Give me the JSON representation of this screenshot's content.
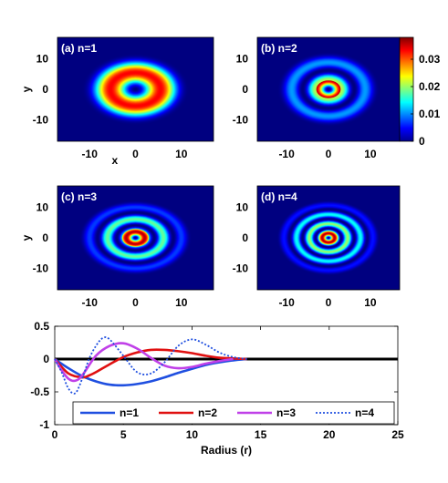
{
  "chart_data": [
    {
      "type": "heatmap",
      "panel_label": "(a) n=1",
      "n": 1,
      "xlabel": "x",
      "ylabel": "y",
      "xlim": [
        -17,
        17
      ],
      "ylim": [
        -17,
        17
      ],
      "xticks": [
        -10,
        0,
        10
      ],
      "yticks": [
        10,
        0,
        -10
      ]
    },
    {
      "type": "heatmap",
      "panel_label": "(b) n=2",
      "n": 2,
      "xlabel": "",
      "ylabel": "",
      "xlim": [
        -17,
        17
      ],
      "ylim": [
        -17,
        17
      ],
      "xticks": [
        -10,
        0,
        10
      ],
      "yticks": [
        10,
        0,
        -10
      ]
    },
    {
      "type": "heatmap",
      "panel_label": "(c) n=3",
      "n": 3,
      "xlabel": "",
      "ylabel": "y",
      "xlim": [
        -17,
        17
      ],
      "ylim": [
        -17,
        17
      ],
      "xticks": [
        -10,
        0,
        10
      ],
      "yticks": [
        10,
        0,
        -10
      ]
    },
    {
      "type": "heatmap",
      "panel_label": "(d) n=4",
      "n": 4,
      "xlabel": "",
      "ylabel": "",
      "xlim": [
        -17,
        17
      ],
      "ylim": [
        -17,
        17
      ],
      "xticks": [
        -10,
        0,
        10
      ],
      "yticks": [
        10,
        0,
        -10
      ]
    },
    {
      "type": "colorbar",
      "colormap": "jet",
      "range": [
        0,
        0.038
      ],
      "ticks": [
        0,
        0.01,
        0.02,
        0.03
      ],
      "tick_labels": [
        "0",
        "0.01",
        "0.02",
        "0.03"
      ]
    },
    {
      "type": "line",
      "xlabel": "Radius (r)",
      "ylabel": "",
      "xlim": [
        0,
        25
      ],
      "ylim": [
        -1,
        0.5
      ],
      "xticks": [
        0,
        5,
        10,
        15,
        20,
        25
      ],
      "yticks": [
        0.5,
        0,
        -0.5,
        -1
      ],
      "ytick_labels": [
        "0.5",
        "0",
        "-0.5",
        "-1"
      ],
      "legend_position": "bottom",
      "series": [
        {
          "name": "n=1",
          "color": "#1f4fe0",
          "dash": "solid",
          "x": [
            0,
            1,
            2,
            3,
            4,
            5,
            6,
            7,
            8,
            9,
            10,
            11,
            12,
            13,
            14
          ],
          "y": [
            0,
            -0.14,
            -0.26,
            -0.34,
            -0.39,
            -0.4,
            -0.38,
            -0.34,
            -0.28,
            -0.21,
            -0.15,
            -0.09,
            -0.05,
            -0.02,
            0
          ]
        },
        {
          "name": "n=2",
          "color": "#e01010",
          "dash": "solid",
          "x": [
            0,
            1,
            2,
            2.5,
            3,
            4,
            5,
            6,
            7,
            8,
            9,
            10,
            11,
            12,
            13,
            14
          ],
          "y": [
            0,
            -0.22,
            -0.28,
            -0.25,
            -0.2,
            -0.08,
            0.03,
            0.1,
            0.14,
            0.14,
            0.12,
            0.09,
            0.05,
            0.02,
            0.01,
            0
          ]
        },
        {
          "name": "n=3",
          "color": "#c040e8",
          "dash": "solid",
          "x": [
            0,
            0.5,
            1,
            1.5,
            2,
            3,
            4,
            5,
            6,
            7,
            8,
            9,
            10,
            11,
            12,
            13
          ],
          "y": [
            0,
            -0.17,
            -0.3,
            -0.33,
            -0.25,
            0.05,
            0.2,
            0.24,
            0.16,
            0.02,
            -0.1,
            -0.14,
            -0.12,
            -0.07,
            -0.03,
            0
          ]
        },
        {
          "name": "n=4",
          "color": "#1f4fe0",
          "dash": "dotted",
          "x": [
            0,
            0.5,
            1,
            1.5,
            2,
            2.5,
            3,
            3.5,
            4,
            5,
            6,
            7,
            8,
            9,
            10,
            11,
            12,
            13,
            14
          ],
          "y": [
            0,
            -0.2,
            -0.45,
            -0.52,
            -0.3,
            0,
            0.2,
            0.32,
            0.3,
            0.05,
            -0.2,
            -0.22,
            -0.05,
            0.2,
            0.3,
            0.22,
            0.1,
            0.03,
            0
          ]
        }
      ]
    }
  ]
}
